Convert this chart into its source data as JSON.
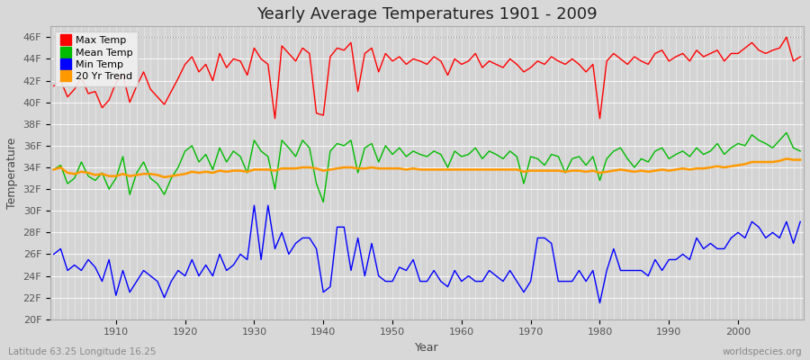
{
  "years": [
    1901,
    1902,
    1903,
    1904,
    1905,
    1906,
    1907,
    1908,
    1909,
    1910,
    1911,
    1912,
    1913,
    1914,
    1915,
    1916,
    1917,
    1918,
    1919,
    1920,
    1921,
    1922,
    1923,
    1924,
    1925,
    1926,
    1927,
    1928,
    1929,
    1930,
    1931,
    1932,
    1933,
    1934,
    1935,
    1936,
    1937,
    1938,
    1939,
    1940,
    1941,
    1942,
    1943,
    1944,
    1945,
    1946,
    1947,
    1948,
    1949,
    1950,
    1951,
    1952,
    1953,
    1954,
    1955,
    1956,
    1957,
    1958,
    1959,
    1960,
    1961,
    1962,
    1963,
    1964,
    1965,
    1966,
    1967,
    1968,
    1969,
    1970,
    1971,
    1972,
    1973,
    1974,
    1975,
    1976,
    1977,
    1978,
    1979,
    1980,
    1981,
    1982,
    1983,
    1984,
    1985,
    1986,
    1987,
    1988,
    1989,
    1990,
    1991,
    1992,
    1993,
    1994,
    1995,
    1996,
    1997,
    1998,
    1999,
    2000,
    2001,
    2002,
    2003,
    2004,
    2005,
    2006,
    2007,
    2008,
    2009
  ],
  "max_temps": [
    41.5,
    42.0,
    40.5,
    41.2,
    42.3,
    40.8,
    41.0,
    39.5,
    40.2,
    41.8,
    42.5,
    40.0,
    41.5,
    42.8,
    41.2,
    40.5,
    39.8,
    41.0,
    42.2,
    43.5,
    44.2,
    42.8,
    43.5,
    42.0,
    44.5,
    43.2,
    44.0,
    43.8,
    42.5,
    45.0,
    44.0,
    43.5,
    38.5,
    45.2,
    44.5,
    43.8,
    45.0,
    44.5,
    39.0,
    38.8,
    44.2,
    45.0,
    44.8,
    45.5,
    41.0,
    44.5,
    45.0,
    42.8,
    44.5,
    43.8,
    44.2,
    43.5,
    44.0,
    43.8,
    43.5,
    44.2,
    43.8,
    42.5,
    44.0,
    43.5,
    43.8,
    44.5,
    43.2,
    43.8,
    43.5,
    43.2,
    44.0,
    43.5,
    42.8,
    43.2,
    43.8,
    43.5,
    44.2,
    43.8,
    43.5,
    44.0,
    43.5,
    42.8,
    43.5,
    38.5,
    43.8,
    44.5,
    44.0,
    43.5,
    44.2,
    43.8,
    43.5,
    44.5,
    44.8,
    43.8,
    44.2,
    44.5,
    43.8,
    44.8,
    44.2,
    44.5,
    44.8,
    43.8,
    44.5,
    44.5,
    45.0,
    45.5,
    44.8,
    44.5,
    44.8,
    45.0,
    46.0,
    43.8,
    44.2
  ],
  "mean_temps": [
    33.8,
    34.2,
    32.5,
    33.0,
    34.5,
    33.2,
    32.8,
    33.5,
    32.0,
    33.0,
    35.0,
    31.5,
    33.5,
    34.5,
    33.0,
    32.5,
    31.5,
    33.0,
    34.0,
    35.5,
    36.0,
    34.5,
    35.2,
    33.8,
    35.8,
    34.5,
    35.5,
    35.0,
    33.5,
    36.5,
    35.5,
    35.0,
    32.0,
    36.5,
    35.8,
    35.0,
    36.5,
    35.8,
    32.5,
    30.8,
    35.5,
    36.2,
    36.0,
    36.5,
    33.5,
    35.8,
    36.2,
    34.5,
    36.0,
    35.2,
    35.8,
    35.0,
    35.5,
    35.2,
    35.0,
    35.5,
    35.2,
    34.0,
    35.5,
    35.0,
    35.2,
    35.8,
    34.8,
    35.5,
    35.2,
    34.8,
    35.5,
    35.0,
    32.5,
    35.0,
    34.8,
    34.2,
    35.2,
    35.0,
    33.5,
    34.8,
    35.0,
    34.2,
    35.0,
    32.8,
    34.8,
    35.5,
    35.8,
    34.8,
    34.0,
    34.8,
    34.5,
    35.5,
    35.8,
    34.8,
    35.2,
    35.5,
    35.0,
    35.8,
    35.2,
    35.5,
    36.2,
    35.2,
    35.8,
    36.2,
    36.0,
    37.0,
    36.5,
    36.2,
    35.8,
    36.5,
    37.2,
    35.8,
    35.5
  ],
  "min_temps": [
    26.0,
    26.5,
    24.5,
    25.0,
    24.5,
    25.5,
    24.8,
    23.5,
    25.5,
    22.2,
    24.5,
    22.5,
    23.5,
    24.5,
    24.0,
    23.5,
    22.0,
    23.5,
    24.5,
    24.0,
    25.5,
    24.0,
    25.0,
    24.0,
    26.0,
    24.5,
    25.0,
    26.0,
    25.5,
    30.5,
    25.5,
    30.5,
    26.5,
    28.0,
    26.0,
    27.0,
    27.5,
    27.5,
    26.5,
    22.5,
    23.0,
    28.5,
    28.5,
    24.5,
    27.5,
    24.0,
    27.0,
    24.0,
    23.5,
    23.5,
    24.8,
    24.5,
    25.5,
    23.5,
    23.5,
    24.5,
    23.5,
    23.0,
    24.5,
    23.5,
    24.0,
    23.5,
    23.5,
    24.5,
    24.0,
    23.5,
    24.5,
    23.5,
    22.5,
    23.5,
    27.5,
    27.5,
    27.0,
    23.5,
    23.5,
    23.5,
    24.5,
    23.5,
    24.5,
    21.5,
    24.5,
    26.5,
    24.5,
    24.5,
    24.5,
    24.5,
    24.0,
    25.5,
    24.5,
    25.5,
    25.5,
    26.0,
    25.5,
    27.5,
    26.5,
    27.0,
    26.5,
    26.5,
    27.5,
    28.0,
    27.5,
    29.0,
    28.5,
    27.5,
    28.0,
    27.5,
    29.0,
    27.0,
    29.0
  ],
  "trend_20yr": [
    33.8,
    34.0,
    33.5,
    33.4,
    33.6,
    33.5,
    33.3,
    33.4,
    33.2,
    33.2,
    33.4,
    33.2,
    33.3,
    33.4,
    33.4,
    33.3,
    33.1,
    33.2,
    33.3,
    33.4,
    33.6,
    33.5,
    33.6,
    33.5,
    33.7,
    33.6,
    33.7,
    33.7,
    33.6,
    33.8,
    33.8,
    33.8,
    33.7,
    33.9,
    33.9,
    33.9,
    34.0,
    34.0,
    33.9,
    33.7,
    33.8,
    33.9,
    34.0,
    34.0,
    33.9,
    33.9,
    34.0,
    33.9,
    33.9,
    33.9,
    33.9,
    33.8,
    33.9,
    33.8,
    33.8,
    33.8,
    33.8,
    33.8,
    33.8,
    33.8,
    33.8,
    33.8,
    33.8,
    33.8,
    33.8,
    33.8,
    33.8,
    33.8,
    33.6,
    33.7,
    33.7,
    33.7,
    33.7,
    33.7,
    33.6,
    33.7,
    33.7,
    33.6,
    33.7,
    33.5,
    33.6,
    33.7,
    33.8,
    33.7,
    33.6,
    33.7,
    33.6,
    33.7,
    33.8,
    33.7,
    33.8,
    33.9,
    33.8,
    33.9,
    33.9,
    34.0,
    34.1,
    34.0,
    34.1,
    34.2,
    34.3,
    34.5,
    34.5,
    34.5,
    34.5,
    34.6,
    34.8,
    34.7,
    34.7
  ],
  "title": "Yearly Average Temperatures 1901 - 2009",
  "xlabel": "Year",
  "ylabel": "Temperature",
  "lat_lon_text": "Latitude 63.25 Longitude 16.25",
  "watermark": "worldspecies.org",
  "legend_labels": [
    "Max Temp",
    "Mean Temp",
    "Min Temp",
    "20 Yr Trend"
  ],
  "line_colors": [
    "#ff0000",
    "#00bb00",
    "#0000ff",
    "#ff9900"
  ],
  "ylim_min": 20,
  "ylim_max": 47,
  "yticks": [
    20,
    22,
    24,
    26,
    28,
    30,
    32,
    34,
    36,
    38,
    40,
    42,
    44,
    46
  ],
  "ytick_labels": [
    "20F",
    "22F",
    "24F",
    "26F",
    "28F",
    "30F",
    "32F",
    "34F",
    "36F",
    "38F",
    "40F",
    "42F",
    "44F",
    "46F"
  ],
  "bg_color": "#d8d8d8",
  "plot_bg_color": "#d4d4d4",
  "grid_color_major": "#ffffff",
  "title_fontsize": 13,
  "axis_label_fontsize": 9,
  "tick_fontsize": 8,
  "legend_fontsize": 8
}
